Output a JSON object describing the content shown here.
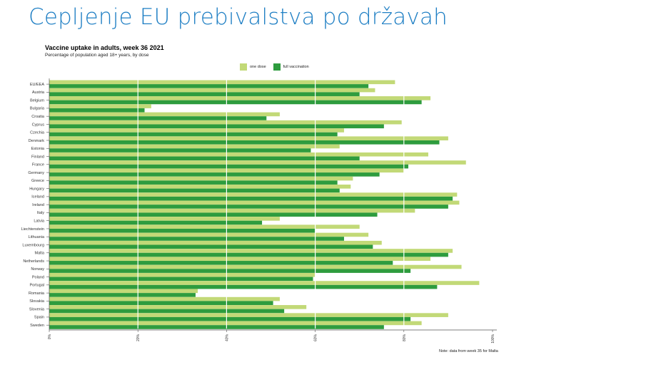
{
  "slide": {
    "title": "Cepljenje EU prebivalstva po državah"
  },
  "chart_data": {
    "type": "bar",
    "orientation": "horizontal",
    "title": "Vaccine uptake in adults, week 36 2021",
    "subtitle": "Percentage of population aged 18+ years, by dose",
    "xlabel": "",
    "ylabel": "",
    "xlim": [
      0,
      100
    ],
    "x_ticks": [
      "0%",
      "20%",
      "40%",
      "60%",
      "80%",
      "100%"
    ],
    "grid": true,
    "legend_position": "top",
    "note": "Note: data from week 35 for Malta",
    "categories": [
      "EU/EEA",
      "Austria",
      "Belgium",
      "Bulgaria",
      "Croatia",
      "Cyprus",
      "Czechia",
      "Denmark",
      "Estonia",
      "Finland",
      "France",
      "Germany",
      "Greece",
      "Hungary",
      "Iceland",
      "Ireland",
      "Italy",
      "Latvia",
      "Liechtenstein",
      "Lithuania",
      "Luxembourg",
      "Malta",
      "Netherlands",
      "Norway",
      "Poland",
      "Portugal",
      "Romania",
      "Slovakia",
      "Slovenia",
      "Spain",
      "Sweden"
    ],
    "series": [
      {
        "name": "one dose",
        "color": "#c2d977",
        "values": [
          78,
          73.5,
          86,
          23,
          52,
          79.5,
          66.5,
          90,
          65.5,
          85.5,
          94,
          80,
          68.5,
          68,
          92,
          92.5,
          82.5,
          52,
          70,
          72,
          75,
          91,
          86,
          93,
          60,
          97,
          33.5,
          52,
          58,
          90,
          84
        ]
      },
      {
        "name": "full vaccination",
        "color": "#2e9c3e",
        "values": [
          72,
          70,
          84,
          21.5,
          49,
          75.5,
          65,
          88,
          59,
          70,
          81,
          74.5,
          65,
          65.5,
          91,
          90,
          74,
          48,
          60,
          66.5,
          73,
          90,
          77.5,
          81.5,
          59.5,
          87.5,
          33,
          50.5,
          53,
          81.5,
          75.5
        ]
      }
    ]
  }
}
